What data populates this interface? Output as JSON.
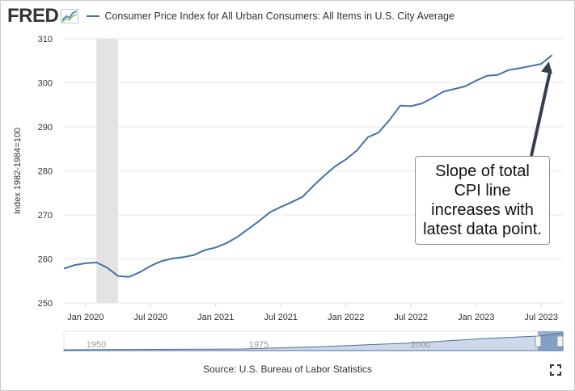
{
  "header": {
    "logo": "FRED",
    "series_title": "Consumer Price Index for All Urban Consumers: All Items in U.S. City Average"
  },
  "source": "Source: U.S. Bureau of Labor Statistics",
  "annotation": {
    "lines": [
      "Slope of total",
      "CPI line",
      "increases with",
      "latest data point."
    ]
  },
  "navigator": {
    "labels": [
      "1950",
      "1975",
      "2000"
    ]
  },
  "colors": {
    "series": "#4572a7",
    "recession": "#e3e3e3",
    "grid": "#e6e6e6",
    "arrow": "#333f4f"
  },
  "chart_data": {
    "type": "line",
    "title": "Consumer Price Index for All Urban Consumers: All Items in U.S. City Average",
    "ylabel": "Index 1982-1984=100",
    "xlabel": "",
    "ylim": [
      250,
      310
    ],
    "yticks": [
      250,
      260,
      270,
      280,
      290,
      300,
      310
    ],
    "xlim": [
      "2019-11",
      "2023-09"
    ],
    "xticks": [
      {
        "label": "Jan 2020",
        "date": "2020-01"
      },
      {
        "label": "Jul 2020",
        "date": "2020-07"
      },
      {
        "label": "Jan 2021",
        "date": "2021-01"
      },
      {
        "label": "Jul 2021",
        "date": "2021-07"
      },
      {
        "label": "Jan 2022",
        "date": "2022-01"
      },
      {
        "label": "Jul 2022",
        "date": "2022-07"
      },
      {
        "label": "Jan 2023",
        "date": "2023-01"
      },
      {
        "label": "Jul 2023",
        "date": "2023-07"
      }
    ],
    "recession": {
      "start": "2020-02",
      "end": "2020-04"
    },
    "grid": true,
    "legend": "top-left",
    "series": [
      {
        "name": "Consumer Price Index for All Urban Consumers: All Items in U.S. City Average",
        "x": [
          "2019-11",
          "2019-12",
          "2020-01",
          "2020-02",
          "2020-03",
          "2020-04",
          "2020-05",
          "2020-06",
          "2020-07",
          "2020-08",
          "2020-09",
          "2020-10",
          "2020-11",
          "2020-12",
          "2021-01",
          "2021-02",
          "2021-03",
          "2021-04",
          "2021-05",
          "2021-06",
          "2021-07",
          "2021-08",
          "2021-09",
          "2021-10",
          "2021-11",
          "2021-12",
          "2022-01",
          "2022-02",
          "2022-03",
          "2022-04",
          "2022-05",
          "2022-06",
          "2022-07",
          "2022-08",
          "2022-09",
          "2022-10",
          "2022-11",
          "2022-12",
          "2023-01",
          "2023-02",
          "2023-03",
          "2023-04",
          "2023-05",
          "2023-06",
          "2023-07",
          "2023-08"
        ],
        "values": [
          257.8,
          258.6,
          259.0,
          259.2,
          258.0,
          256.1,
          255.9,
          257.0,
          258.4,
          259.5,
          260.1,
          260.4,
          260.9,
          262.0,
          262.6,
          263.6,
          265.0,
          266.8,
          268.6,
          270.6,
          271.8,
          272.9,
          274.1,
          276.6,
          278.9,
          281.0,
          282.6,
          284.6,
          287.6,
          288.7,
          291.5,
          294.8,
          294.7,
          295.3,
          296.6,
          298.0,
          298.6,
          299.2,
          300.5,
          301.6,
          301.8,
          302.9,
          303.3,
          303.8,
          304.3,
          306.3
        ]
      }
    ]
  }
}
